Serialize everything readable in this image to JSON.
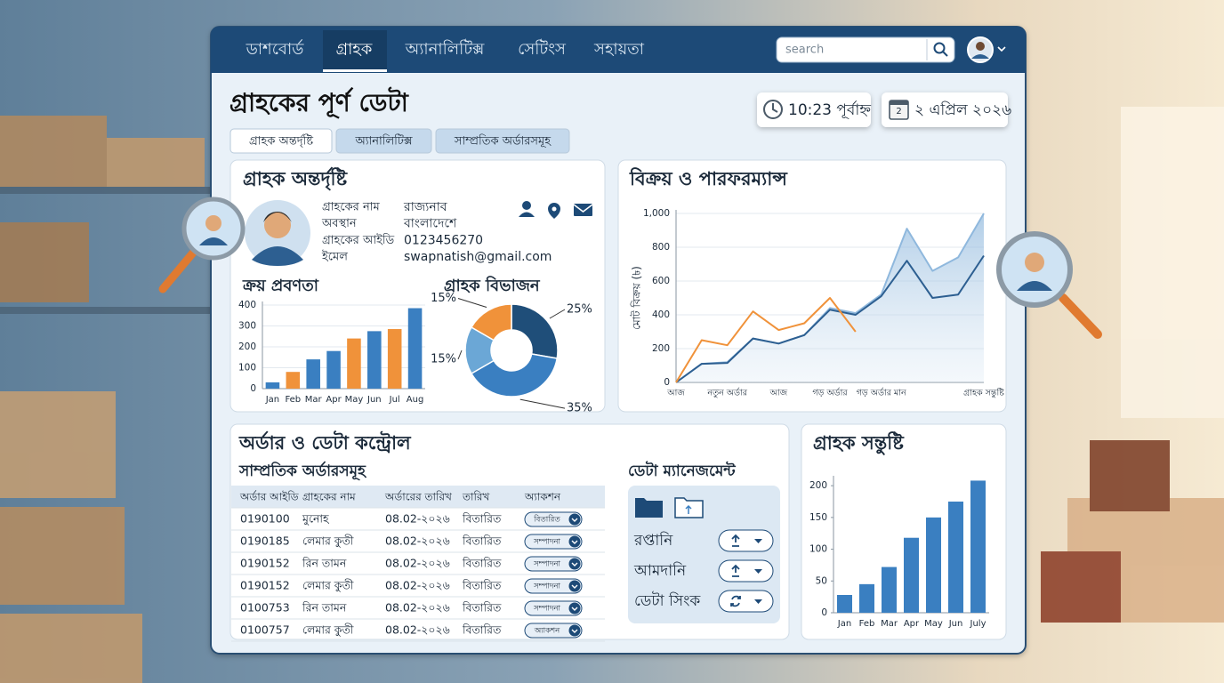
{
  "nav": {
    "items": [
      "ডাশবোর্ড",
      "গ্রাহক",
      "অ্যানালিটিক্স",
      "সেটিংস",
      "সহায়তা"
    ],
    "active": 1,
    "search": "search"
  },
  "header": {
    "title": "গ্রাহকের পূর্ণ ডেটা",
    "time": "10:23 পূর্বাহ্ন",
    "date": "২ এপ্রিল ২০২৬",
    "calendar_day": "2"
  },
  "tabs": [
    "গ্রাহক অন্তর্দৃষ্টি",
    "অ্যানালিটিক্স",
    "সাম্প্রতিক অর্ডারসমূহ"
  ],
  "insight": {
    "title": "গ্রাহক অন্তর্দৃষ্টি",
    "fields": [
      {
        "label": "গ্রাহকের নাম",
        "value": "রাজ্যনাব"
      },
      {
        "label": "অবস্থান",
        "value": "বাংলাদেশে"
      },
      {
        "label": "গ্রাহকের আইডি",
        "value": "0123456270"
      },
      {
        "label": "ইমেল",
        "value": "swapnatish@gmail.com"
      }
    ]
  },
  "sales_panel": {
    "title": "বিক্রয় ও পারফরম্যান্স"
  },
  "orders": {
    "title": "অর্ডার ও ডেটা কন্ট্রোল",
    "subtitle": "সাম্প্রতিক অর্ডারসমূহ",
    "headers": [
      "অর্ডার আইডি",
      "গ্রাহকের নাম",
      "অর্ডারের তারিখ",
      "তারিখ",
      "অ্যাকশন"
    ],
    "rows": [
      [
        "0190100",
        "মুনোহ",
        "08.02-২০২৬",
        "বিতারিত",
        "বিতারিত"
      ],
      [
        "0190185",
        "লেমার কুতী",
        "08.02-২০২৬",
        "বিতারিত",
        "সম্পাদনা"
      ],
      [
        "0190152",
        "রিন তামন",
        "08.02-২০২৬",
        "বিতারিত",
        "সম্পাদনা"
      ],
      [
        "0190152",
        "লেমার কুতী",
        "08.02-২০২৬",
        "বিতারিত",
        "সম্পাদনা"
      ],
      [
        "0100753",
        "রিন তামন",
        "08.02-২০২৬",
        "বিতারিত",
        "সম্পাদনা"
      ],
      [
        "0100757",
        "লেমার কুতী",
        "08.02-২০২৬",
        "বিতারিত",
        "অ্যাকশন"
      ]
    ]
  },
  "data_management": {
    "title": "ডেটা ম্যানেজমেন্ট",
    "items": [
      "রপ্তানি",
      "আমদানি",
      "ডেটা সিংক"
    ]
  },
  "chart_data": [
    {
      "type": "bar",
      "title": "ক্রয় প্রবণতা",
      "categories": [
        "Jan",
        "Feb",
        "Mar",
        "Apr",
        "May",
        "Jun",
        "Jul",
        "Aug"
      ],
      "values": [
        30,
        80,
        140,
        180,
        240,
        275,
        285,
        385
      ],
      "colors": [
        "#3a7fc1",
        "#f0923a",
        "#3a7fc1",
        "#3a7fc1",
        "#f0923a",
        "#3a7fc1",
        "#f0923a",
        "#3a7fc1"
      ],
      "ylim": [
        0,
        400
      ],
      "yticks": [
        0,
        100,
        200,
        300,
        400
      ],
      "grid": true
    },
    {
      "type": "pie",
      "title": "গ্রাহক বিভাজন",
      "values": [
        25,
        35,
        15,
        15
      ],
      "value_labels": [
        "25%",
        "35%",
        "15%",
        "15%"
      ],
      "colors": [
        "#1f4e79",
        "#3a7fc1",
        "#6ba7d6",
        "#f0923a"
      ],
      "donut": true
    },
    {
      "type": "line",
      "ylabel": "মোট বিক্রয় (৳)",
      "categories": [
        "আজ",
        null,
        "নতুন অর্ডার",
        null,
        "আজ",
        null,
        "গড় অর্ডার",
        null,
        "গড় অর্ডার মান",
        null,
        null,
        null,
        "গ্রাহক সন্তুষ্টি"
      ],
      "series": [
        {
          "color": "#8fb8dd",
          "area": true,
          "values": [
            0,
            110,
            120,
            260,
            230,
            280,
            440,
            410,
            520,
            910,
            660,
            740,
            1000
          ]
        },
        {
          "color": "#2d5f91",
          "values": [
            0,
            110,
            115,
            260,
            230,
            280,
            430,
            400,
            510,
            720,
            500,
            520,
            750
          ]
        },
        {
          "color": "#f0923a",
          "values": [
            0,
            250,
            220,
            420,
            310,
            350,
            500,
            300,
            null,
            null,
            null,
            null,
            null
          ]
        }
      ],
      "ylim": [
        0,
        1000
      ],
      "yticks": [
        0,
        200,
        400,
        600,
        800,
        {
          "value": 1000,
          "label": "1,000"
        }
      ],
      "grid": true
    },
    {
      "type": "bar",
      "title": "গ্রাহক সন্তুষ্টি",
      "categories": [
        "Jan",
        "Feb",
        "Mar",
        "Apr",
        "May",
        "Jun",
        "July"
      ],
      "values": [
        28,
        45,
        72,
        118,
        150,
        175,
        208
      ],
      "colors": [
        "#3a7fc1",
        "#3a7fc1",
        "#3a7fc1",
        "#3a7fc1",
        "#3a7fc1",
        "#3a7fc1",
        "#3a7fc1"
      ],
      "ylim": [
        0,
        210
      ],
      "yticks": [
        0,
        50,
        100,
        150,
        200
      ],
      "grid": false
    }
  ]
}
